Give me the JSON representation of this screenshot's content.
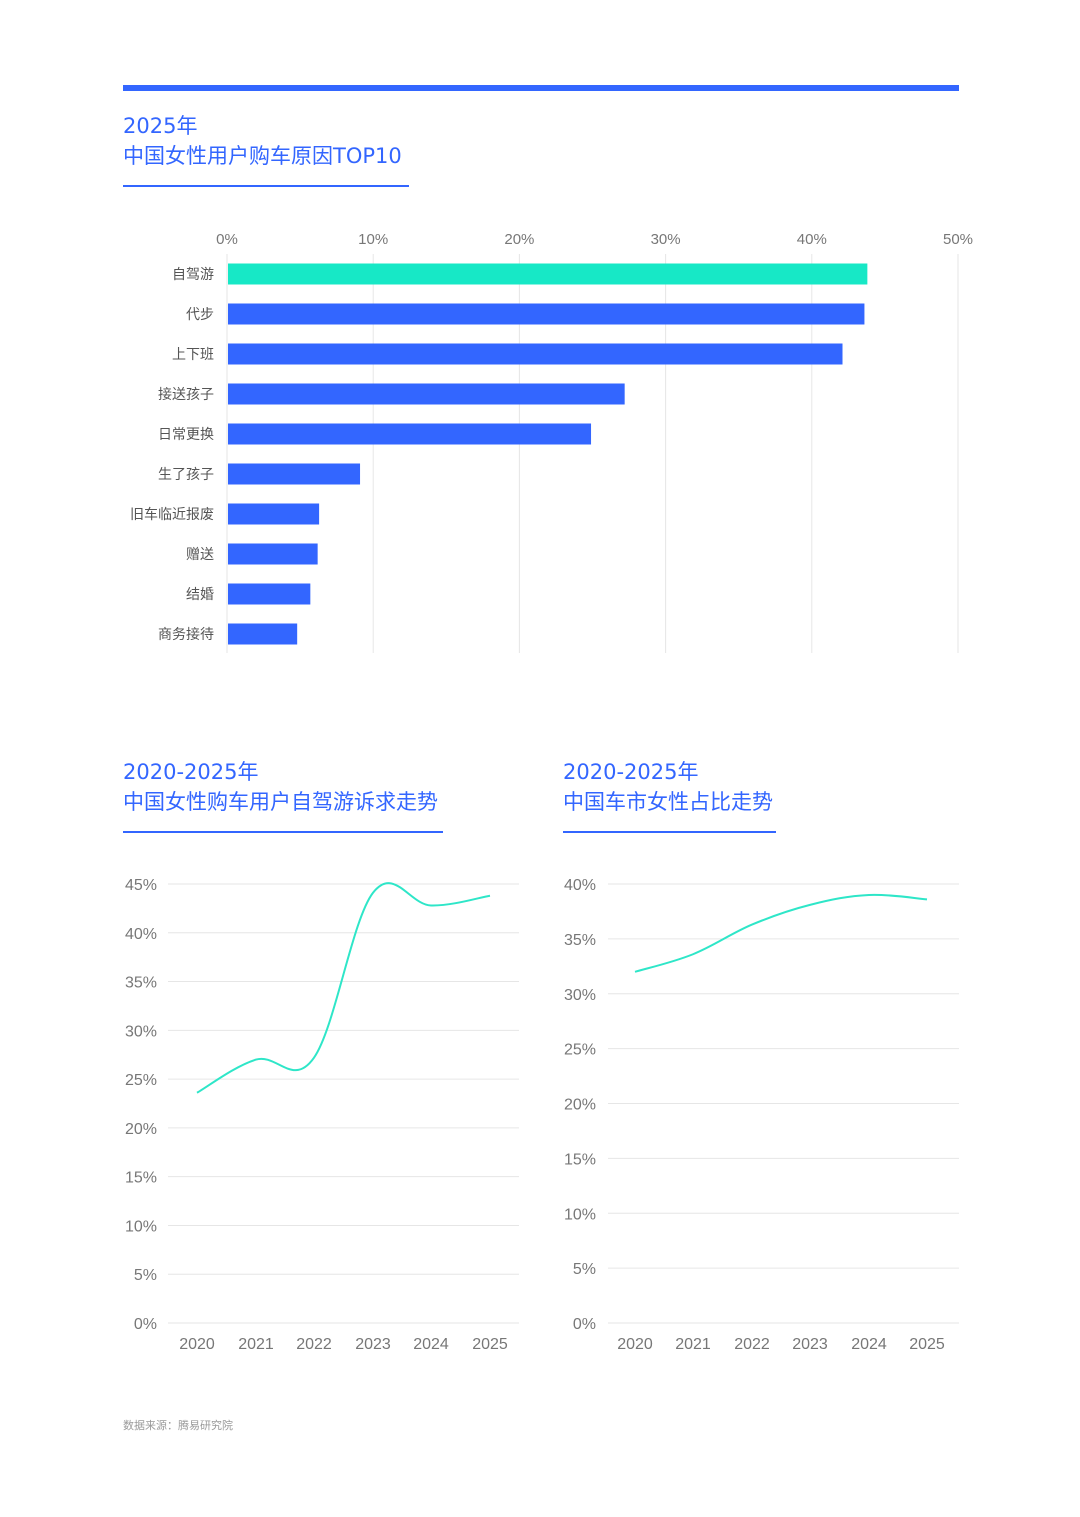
{
  "colors": {
    "accent": "#3366ff",
    "highlight": "#17e8c6",
    "line": "#2ee6c8",
    "grid": "#e6e6e6",
    "axis_text": "#777777",
    "label_text": "#555555"
  },
  "sections": {
    "bar": {
      "title_line1": "2025年",
      "title_line2": "中国女性用户购车原因TOP10"
    },
    "line1": {
      "title_line1": "2020-2025年",
      "title_line2": "中国女性购车用户自驾游诉求走势"
    },
    "line2": {
      "title_line1": "2020-2025年",
      "title_line2": "中国车市女性占比走势"
    }
  },
  "source": "数据来源：腾易研究院",
  "chart_data": [
    {
      "type": "bar",
      "orientation": "horizontal",
      "title": "中国女性用户购车原因TOP10",
      "categories": [
        "自驾游",
        "代步",
        "上下班",
        "接送孩子",
        "日常更换",
        "生了孩子",
        "旧车临近报废",
        "赠送",
        "结婚",
        "商务接待"
      ],
      "values": [
        43.8,
        43.6,
        42.1,
        27.2,
        24.9,
        9.1,
        6.3,
        6.2,
        5.7,
        4.8
      ],
      "highlight_index": 0,
      "xlim": [
        0,
        50
      ],
      "x_ticks": [
        "0%",
        "10%",
        "20%",
        "30%",
        "40%",
        "50%"
      ],
      "axis_position": "top",
      "grid": true
    },
    {
      "type": "line",
      "title": "中国女性购车用户自驾游诉求走势",
      "x": [
        "2020",
        "2021",
        "2022",
        "2023",
        "2024",
        "2025"
      ],
      "values": [
        23.6,
        27.0,
        27.2,
        44.1,
        42.8,
        43.8
      ],
      "ylim": [
        0,
        45
      ],
      "y_ticks": [
        "0%",
        "5%",
        "10%",
        "15%",
        "20%",
        "25%",
        "30%",
        "35%",
        "40%",
        "45%"
      ],
      "grid": true,
      "smooth": true
    },
    {
      "type": "line",
      "title": "中国车市女性占比走势",
      "x": [
        "2020",
        "2021",
        "2022",
        "2023",
        "2024",
        "2025"
      ],
      "values": [
        32.0,
        33.6,
        36.3,
        38.1,
        39.0,
        38.6
      ],
      "ylim": [
        0,
        40
      ],
      "y_ticks": [
        "0%",
        "5%",
        "10%",
        "15%",
        "20%",
        "25%",
        "30%",
        "35%",
        "40%"
      ],
      "grid": true,
      "smooth": true
    }
  ]
}
